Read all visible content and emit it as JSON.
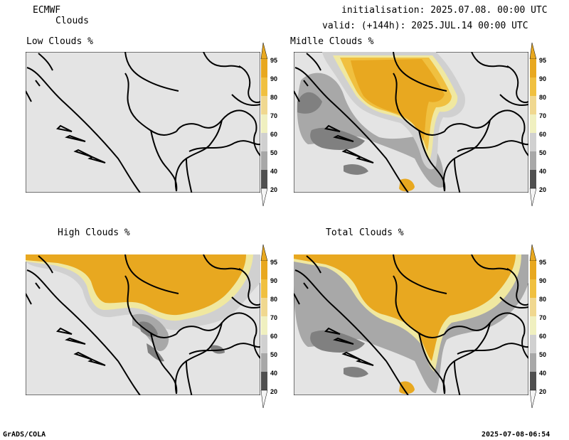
{
  "header": {
    "model": "ECMWF",
    "product": "Clouds",
    "init_line": "initialisation: 2025.07.08. 00:00 UTC",
    "valid_line": "valid: (+144h): 2025.JUL.14 00:00 UTC"
  },
  "panels": {
    "low": {
      "title": "Low Clouds %"
    },
    "mid": {
      "title": "Midlle Clouds %"
    },
    "high": {
      "title": "High Clouds %"
    },
    "total": {
      "title": "Total Clouds %"
    }
  },
  "legend": {
    "levels": [
      "95",
      "90",
      "80",
      "70",
      "60",
      "50",
      "40",
      "20"
    ],
    "colors": {
      "c95": "#e8a820",
      "c90": "#f0c040",
      "c80": "#f0d890",
      "c70": "#f0f0c0",
      "c60": "#d0d0d0",
      "c50": "#a8a8a8",
      "c40": "#808080",
      "c20": "#505050",
      "clear": "#e4e4e4"
    }
  },
  "footer": {
    "left": "GrADS/COLA",
    "right": "2025-07-08-06:54"
  }
}
